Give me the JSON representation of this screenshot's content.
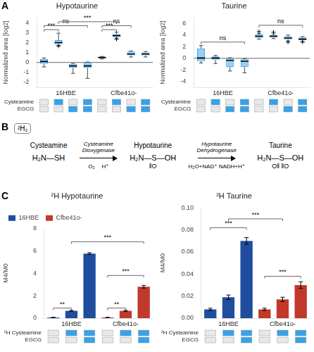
{
  "chart_data": [
    {
      "panel": "A",
      "type": "box",
      "title": "Hypotaurine",
      "ylabel": "Normalized area [log2]",
      "categories": [
        null,
        null,
        null,
        null,
        null,
        null,
        null,
        null
      ],
      "groups": [
        "16HBE",
        "16HBE",
        "16HBE",
        "16HBE",
        "Cfbe41o-",
        "Cfbe41o-",
        "Cfbe41o-",
        "Cfbe41o-"
      ],
      "boxes": [
        {
          "median": 0.1,
          "q1": -0.15,
          "q3": 0.35,
          "whislo": -0.45,
          "whishi": 0.45,
          "fliers": []
        },
        {
          "median": 2.0,
          "q1": 1.8,
          "q3": 2.25,
          "whislo": 1.7,
          "whishi": 2.95,
          "fliers": [
            1.65
          ]
        },
        {
          "median": -0.35,
          "q1": -0.55,
          "q3": -0.15,
          "whislo": -1.1,
          "whishi": -0.1,
          "fliers": []
        },
        {
          "median": -0.35,
          "q1": -0.55,
          "q3": 0.05,
          "whislo": -1.6,
          "whishi": 0.05,
          "fliers": []
        },
        {
          "median": 0.5,
          "q1": 0.4,
          "q3": 0.55,
          "whislo": 0.35,
          "whishi": 0.6,
          "fliers": []
        },
        {
          "median": 2.7,
          "q1": 2.55,
          "q3": 2.85,
          "whislo": 2.45,
          "whishi": 3.05,
          "fliers": [
            2.35
          ]
        },
        {
          "median": 0.85,
          "q1": 0.7,
          "q3": 1.1,
          "whislo": 0.55,
          "whishi": 1.15,
          "fliers": []
        },
        {
          "median": 0.85,
          "q1": 0.7,
          "q3": 1.0,
          "whislo": 0.55,
          "whishi": 1.1,
          "fliers": []
        }
      ],
      "ylim": [
        -2.5,
        4.5
      ],
      "yticks": [
        -2,
        -1,
        0,
        1,
        2,
        3,
        4
      ],
      "grid": false,
      "hline": 0,
      "brackets": [
        {
          "from": 0,
          "to": 1,
          "y": 3.3,
          "text": "***"
        },
        {
          "from": 0,
          "to": 3,
          "y": 3.7,
          "text": "ns"
        },
        {
          "from": 4,
          "to": 5,
          "y": 3.3,
          "text": "***"
        },
        {
          "from": 4,
          "to": 6,
          "y": 3.7,
          "text": "ns"
        },
        {
          "from": 1,
          "to": 5,
          "y": 4.1,
          "text": "***"
        }
      ],
      "treatments": [
        {
          "name": "Cysteamine",
          "on": [
            false,
            true,
            false,
            true,
            false,
            true,
            false,
            true
          ]
        },
        {
          "name": "EGCG",
          "on": [
            false,
            false,
            true,
            true,
            false,
            false,
            true,
            true
          ]
        }
      ]
    },
    {
      "type": "box",
      "title": "Taurine",
      "ylabel": "Normalized area [log2]",
      "categories": [
        null,
        null,
        null,
        null,
        null,
        null,
        null,
        null
      ],
      "groups": [
        "16HBE",
        "16HBE",
        "16HBE",
        "16HBE",
        "Cfbe41o-",
        "Cfbe41o-",
        "Cfbe41o-",
        "Cfbe41o-"
      ],
      "boxes": [
        {
          "median": 0.05,
          "q1": -0.5,
          "q3": 1.7,
          "whislo": -0.8,
          "whishi": 2.2,
          "fliers": []
        },
        {
          "median": 0.05,
          "q1": -0.3,
          "q3": 0.3,
          "whislo": -0.9,
          "whishi": 0.5,
          "fliers": []
        },
        {
          "median": -0.35,
          "q1": -1.5,
          "q3": 0.0,
          "whislo": -2.2,
          "whishi": 0.1,
          "fliers": []
        },
        {
          "median": -0.5,
          "q1": -1.5,
          "q3": -0.1,
          "whislo": -2.5,
          "whishi": -0.05,
          "fliers": []
        },
        {
          "median": 3.8,
          "q1": 3.5,
          "q3": 4.1,
          "whislo": 3.3,
          "whishi": 4.3,
          "fliers": [
            4.6
          ]
        },
        {
          "median": 3.8,
          "q1": 3.6,
          "q3": 4.0,
          "whislo": 3.4,
          "whishi": 4.2,
          "fliers": [
            4.5
          ]
        },
        {
          "median": 3.5,
          "q1": 3.2,
          "q3": 3.8,
          "whislo": 3.0,
          "whishi": 4.0,
          "fliers": [
            2.8
          ]
        },
        {
          "median": 3.3,
          "q1": 3.1,
          "q3": 3.6,
          "whislo": 2.9,
          "whishi": 3.75,
          "fliers": [
            2.8
          ]
        }
      ],
      "ylim": [
        -5,
        7
      ],
      "yticks": [
        -4,
        -2,
        0,
        2,
        4,
        6
      ],
      "grid": false,
      "hline": 0,
      "brackets": [
        {
          "from": 0,
          "to": 3,
          "y": 2.8,
          "text": "ns"
        },
        {
          "from": 4,
          "to": 7,
          "y": 5.7,
          "text": "ns"
        }
      ],
      "treatments": [
        {
          "name": "Cysteamine",
          "on": [
            false,
            true,
            false,
            true,
            false,
            true,
            false,
            true
          ]
        },
        {
          "name": "EGCG",
          "on": [
            false,
            false,
            true,
            true,
            false,
            false,
            true,
            true
          ]
        }
      ]
    },
    {
      "panel": "B",
      "type": "diagram",
      "label": "²H₂",
      "nodes": [
        {
          "name": "Cysteamine",
          "formula": "H₂N—SH",
          "sub": ""
        },
        {
          "name": "Hypotaurine",
          "formula": "H₂N—S—OH",
          "sub": "‖O"
        },
        {
          "name": "Taurine",
          "formula": "H₂N—S—OH",
          "sub": "O‖  ‖O"
        }
      ],
      "steps": [
        {
          "enzyme": "Cysteamine\nDioxygenase",
          "cofactors": [
            "O₂",
            "H⁺"
          ]
        },
        {
          "enzyme": "Hypotaurine\nDehydrogenase",
          "cofactors": [
            "H₂O+NAD⁺ NADH+H⁺"
          ]
        }
      ]
    },
    {
      "panel": "C",
      "type": "bar",
      "title": "²H Hypotaurine",
      "ylabel": "M4/M0",
      "categories": [
        null,
        null,
        null,
        null,
        null,
        null
      ],
      "groups": [
        "16HBE",
        "16HBE",
        "16HBE",
        "Cfbe41o-",
        "Cfbe41o-",
        "Cfbe41o-"
      ],
      "series": [
        {
          "name": "16HBE",
          "color": "#1f4e9e",
          "values": [
            0.07,
            0.65,
            5.75,
            null,
            null,
            null
          ],
          "errors": [
            0.01,
            0.05,
            0.08,
            null,
            null,
            null
          ]
        },
        {
          "name": "Cfbe41o-",
          "color": "#c0392b",
          "values": [
            null,
            null,
            null,
            0.07,
            0.65,
            2.8
          ],
          "errors": [
            null,
            null,
            null,
            0.01,
            0.05,
            0.12
          ]
        }
      ],
      "ylim": [
        0,
        8
      ],
      "yticks": [
        0,
        2,
        4,
        6,
        8
      ],
      "grid": false,
      "legend": "upper left",
      "brackets": [
        {
          "from": 0,
          "to": 1,
          "y": 0.9,
          "text": "**"
        },
        {
          "from": 3,
          "to": 4,
          "y": 0.9,
          "text": "**"
        },
        {
          "from": 3,
          "to": 5,
          "y": 3.8,
          "text": "***"
        },
        {
          "from": 1,
          "to": 5,
          "y": 6.8,
          "text": "***"
        }
      ],
      "treatments": [
        {
          "name": "²H Cysteamine",
          "on": [
            false,
            true,
            true,
            false,
            true,
            true
          ]
        },
        {
          "name": "EGCG",
          "on": [
            false,
            false,
            true,
            false,
            false,
            true
          ]
        }
      ]
    },
    {
      "type": "bar",
      "title": "²H Taurine",
      "ylabel": "M4/M0",
      "categories": [
        null,
        null,
        null,
        null,
        null,
        null
      ],
      "groups": [
        "16HBE",
        "16HBE",
        "16HBE",
        "Cfbe41o-",
        "Cfbe41o-",
        "Cfbe41o-"
      ],
      "series": [
        {
          "name": "16HBE",
          "color": "#1f4e9e",
          "values": [
            0.008,
            0.019,
            0.07,
            null,
            null,
            null
          ],
          "errors": [
            0.001,
            0.002,
            0.003,
            null,
            null,
            null
          ]
        },
        {
          "name": "Cfbe41o-",
          "color": "#c0392b",
          "values": [
            null,
            null,
            null,
            0.008,
            0.017,
            0.03
          ],
          "errors": [
            null,
            null,
            null,
            0.001,
            0.002,
            0.003
          ]
        }
      ],
      "ylim": [
        0,
        0.1
      ],
      "yticks": [
        {
          "value": 0,
          "label": "0.00"
        },
        0.02,
        0.04,
        0.06,
        0.08,
        {
          "value": 0.1,
          "label": "0.10"
        }
      ],
      "grid": false,
      "brackets": [
        {
          "from": 0,
          "to": 2,
          "y": 0.082,
          "text": "***"
        },
        {
          "from": 3,
          "to": 5,
          "y": 0.038,
          "text": "***"
        },
        {
          "from": 1,
          "to": 4,
          "y": 0.09,
          "text": "***"
        }
      ],
      "treatments": [
        {
          "name": "²H Cysteamine",
          "on": [
            false,
            true,
            true,
            false,
            true,
            true
          ]
        },
        {
          "name": "EGCG",
          "on": [
            false,
            false,
            true,
            false,
            false,
            true
          ]
        }
      ]
    }
  ]
}
